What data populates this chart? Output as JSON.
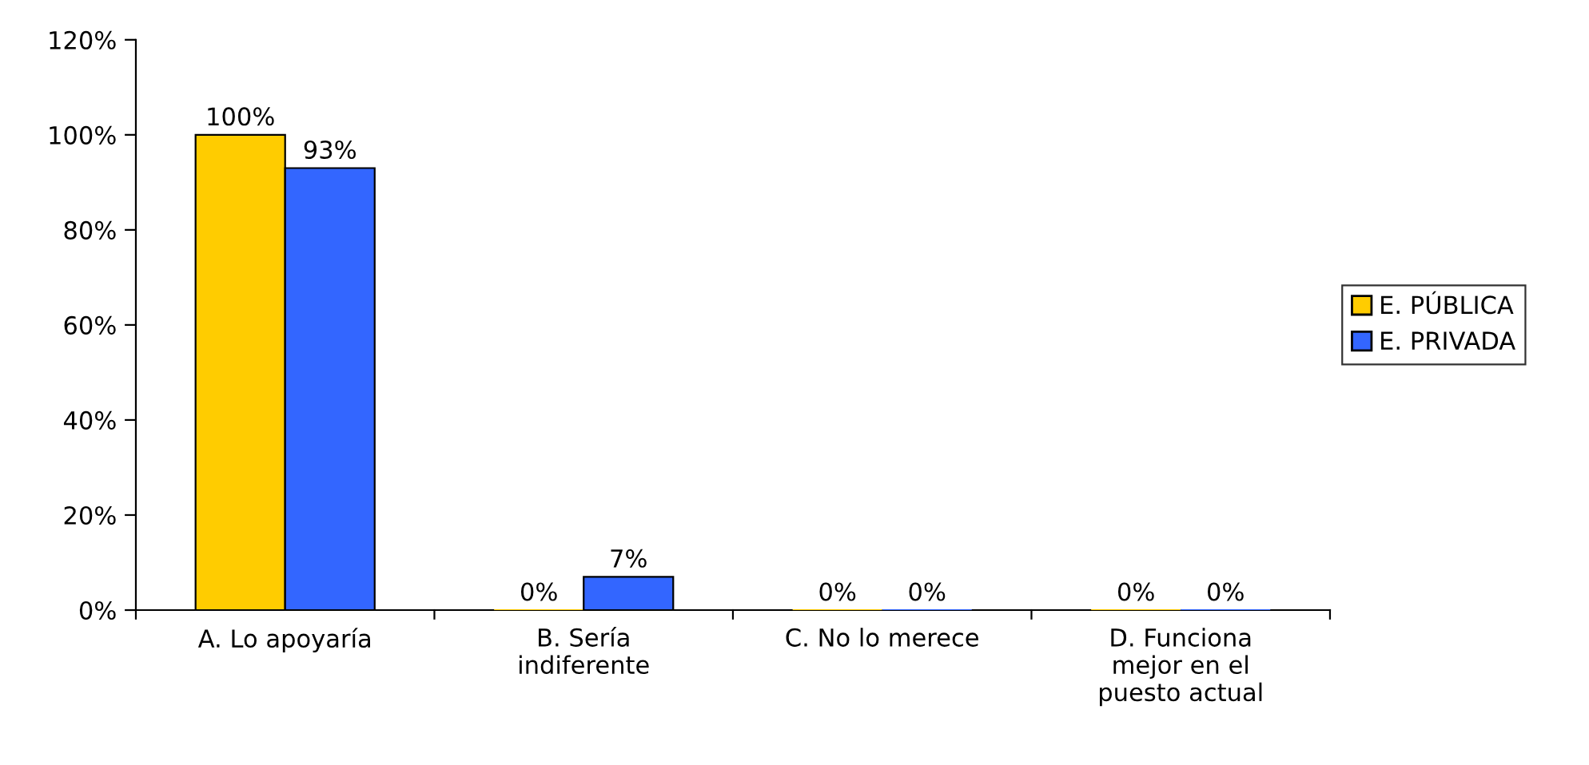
{
  "chart_data": {
    "type": "bar",
    "categories": [
      "A. Lo apoyaría",
      "B. Sería\nindiferente",
      "C. No lo merece",
      "D. Funciona\nmejor en el\npuesto actual"
    ],
    "series": [
      {
        "name": "E. PÚBLICA",
        "color": "#ffcc00",
        "values": [
          100,
          0,
          0,
          0
        ],
        "value_labels": [
          "100%",
          "0%",
          "0%",
          "0%"
        ]
      },
      {
        "name": "E. PRIVADA",
        "color": "#3366ff",
        "values": [
          93,
          7,
          0,
          0
        ],
        "value_labels": [
          "93%",
          "7%",
          "0%",
          "0%"
        ]
      }
    ],
    "ylim": [
      0,
      120
    ],
    "yticks": [
      {
        "value": 0,
        "label": "0%"
      },
      {
        "value": 20,
        "label": "20%"
      },
      {
        "value": 40,
        "label": "40%"
      },
      {
        "value": 60,
        "label": "60%"
      },
      {
        "value": 80,
        "label": "80%"
      },
      {
        "value": 100,
        "label": "100%"
      },
      {
        "value": 120,
        "label": "120%"
      }
    ],
    "legend": "right",
    "grid": false
  }
}
